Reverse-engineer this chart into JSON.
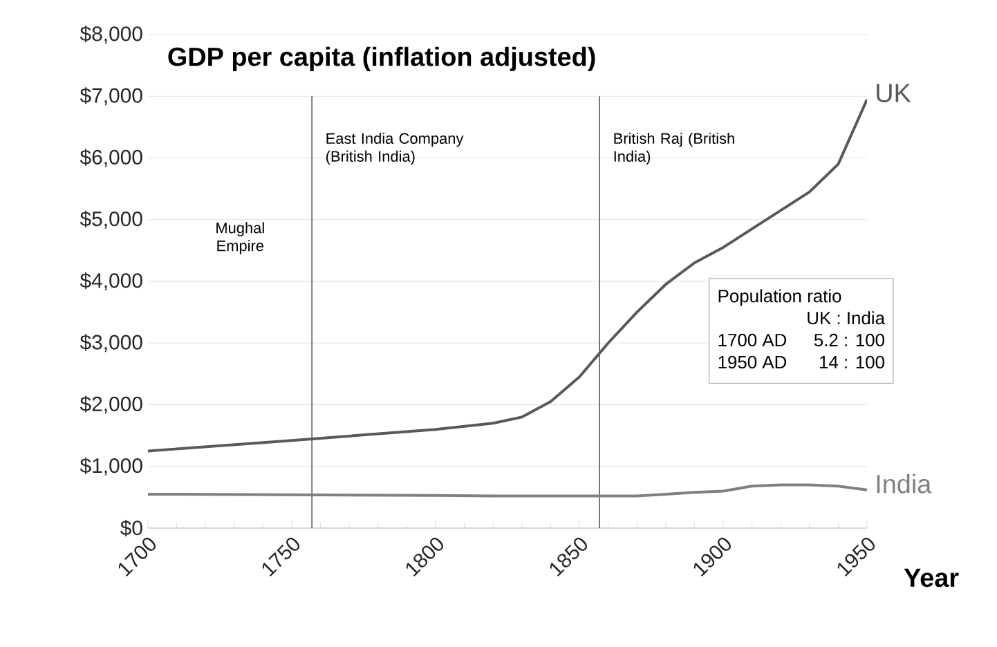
{
  "chart_data": {
    "type": "line",
    "title": "GDP per capita (inflation adjusted)",
    "xlabel": "Year",
    "x": [
      1700,
      1750,
      1800,
      1820,
      1830,
      1840,
      1850,
      1860,
      1870,
      1880,
      1890,
      1900,
      1910,
      1920,
      1930,
      1940,
      1950
    ],
    "series": [
      {
        "name": "UK",
        "color": "#595959",
        "values": [
          1250,
          1420,
          1600,
          1700,
          1800,
          2050,
          2450,
          3000,
          3500,
          3950,
          4300,
          4550,
          4850,
          5150,
          5450,
          5900,
          6950
        ]
      },
      {
        "name": "India",
        "color": "#808080",
        "values": [
          550,
          540,
          530,
          520,
          520,
          520,
          520,
          520,
          520,
          550,
          580,
          600,
          680,
          700,
          700,
          680,
          620
        ]
      }
    ],
    "xlim": [
      1700,
      1950
    ],
    "xticks": [
      1700,
      1750,
      1800,
      1850,
      1900,
      1950
    ],
    "ylim": [
      0,
      8000
    ],
    "yticks": [
      {
        "value": 0,
        "label": "$0"
      },
      {
        "value": 1000,
        "label": "$1,000"
      },
      {
        "value": 2000,
        "label": "$2,000"
      },
      {
        "value": 3000,
        "label": "$3,000"
      },
      {
        "value": 4000,
        "label": "$4,000"
      },
      {
        "value": 5000,
        "label": "$5,000"
      },
      {
        "value": 6000,
        "label": "$6,000"
      },
      {
        "value": 7000,
        "label": "$7,000"
      },
      {
        "value": 8000,
        "label": "$8,000"
      }
    ],
    "ref_lines": [
      {
        "axis": "x",
        "value": 1757,
        "label": "East India Company (British India)",
        "color": "#595959"
      },
      {
        "axis": "x",
        "value": 1857,
        "label": "British Raj (British India)",
        "color": "#595959"
      }
    ],
    "annotations": [
      "Mughal Empire",
      "Population ratio",
      "UK : India",
      "1700 AD",
      "5.2 : 100",
      "1950 AD",
      "14 : 100"
    ],
    "grid": "y",
    "marker": "none",
    "line_style": "solid"
  }
}
